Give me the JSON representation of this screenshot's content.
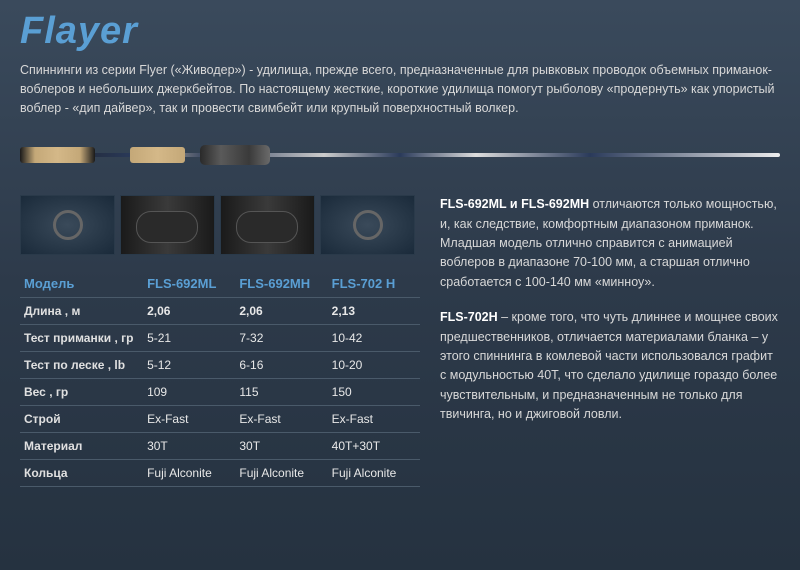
{
  "title": "Flayer",
  "intro": "Спиннинги из серии Flyer («Живодер») - удилища, прежде всего, предназначенные для рывковых проводок объемных приманок-воблеров и небольших джеркбейтов. По настоящему жесткие, короткие удилища помогут рыболову «продернуть» как упористый воблер - «дип дайвер», так и провести свимбейт или крупный поверхностный волкер.",
  "table": {
    "headers": [
      "Модель",
      "FLS-692ML",
      "FLS-692MH",
      "FLS-702 H"
    ],
    "rows": [
      {
        "label": "Длина , м",
        "vals": [
          "2,06",
          "2,06",
          "2,13"
        ],
        "bold": true
      },
      {
        "label": "Тест приманки , гр",
        "vals": [
          "5-21",
          "7-32",
          "10-42"
        ]
      },
      {
        "label": "Тест по леске , lb",
        "vals": [
          "5-12",
          "6-16",
          "10-20"
        ]
      },
      {
        "label": "Вес , гр",
        "vals": [
          "109",
          "115",
          "150"
        ]
      },
      {
        "label": "Строй",
        "vals": [
          "Ex-Fast",
          "Ex-Fast",
          "Ex-Fast"
        ]
      },
      {
        "label": "Материал",
        "vals": [
          "30T",
          "30T",
          "40T+30T"
        ]
      },
      {
        "label": "Кольца",
        "vals": [
          "Fuji Alconite",
          "Fuji Alconite",
          "Fuji Alconite"
        ]
      }
    ]
  },
  "desc1": {
    "models": "FLS-692ML и FLS-692MH",
    "text": " отличаются только мощностью, и, как следствие, комфортным диапазоном приманок. Младшая модель отлично справится с анимацией воблеров в диапазоне 70-100 мм, а старшая отлично сработается с 100-140 мм «минноу»."
  },
  "desc2": {
    "models": "FLS-702H",
    "text": " – кроме того, что чуть длиннее и мощнее своих предшественников, отличается материалами бланка – у этого спиннинга в комлевой части использовался графит с модульностью 40T, что сделало удилище гораздо более чувствительным, и предназначенным не только для твичинга, но и джиговой ловли."
  },
  "colors": {
    "accent": "#5a9fd4",
    "text": "#e8e8e8",
    "bg_top": "#3a4a5c",
    "bg_bottom": "#253240"
  }
}
